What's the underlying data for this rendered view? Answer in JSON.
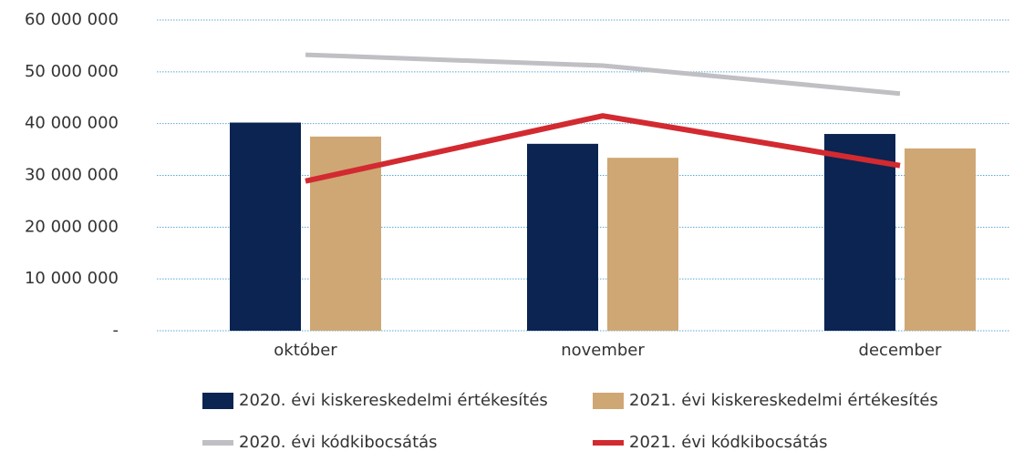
{
  "chart_data": {
    "type": "combo",
    "categories": [
      "október",
      "november",
      "december"
    ],
    "series": [
      {
        "name": "2020. évi kiskereskedelmi értékesítés",
        "type": "bar",
        "color": "#0b2452",
        "values": [
          40200000,
          36100000,
          38000000
        ]
      },
      {
        "name": "2021. évi kiskereskedelmi értékesítés",
        "type": "bar",
        "color": "#cfa774",
        "values": [
          37500000,
          33400000,
          35200000
        ]
      },
      {
        "name": "2020. évi kódkibocsátás",
        "type": "line",
        "color": "#bfbfc4",
        "values": [
          53300000,
          51200000,
          45800000
        ]
      },
      {
        "name": "2021. évi kódkibocsátás",
        "type": "line",
        "color": "#d22a30",
        "values": [
          28900000,
          41500000,
          31900000
        ]
      }
    ],
    "ylim": [
      0,
      60000000
    ],
    "yticks": [
      {
        "value": 0,
        "label": "-"
      },
      {
        "value": 10000000,
        "label": "10 000 000"
      },
      {
        "value": 20000000,
        "label": "20 000 000"
      },
      {
        "value": 30000000,
        "label": "30 000 000"
      },
      {
        "value": 40000000,
        "label": "40 000 000"
      },
      {
        "value": 50000000,
        "label": "50 000 000"
      },
      {
        "value": 60000000,
        "label": "60 000 000"
      }
    ],
    "grid": true
  }
}
